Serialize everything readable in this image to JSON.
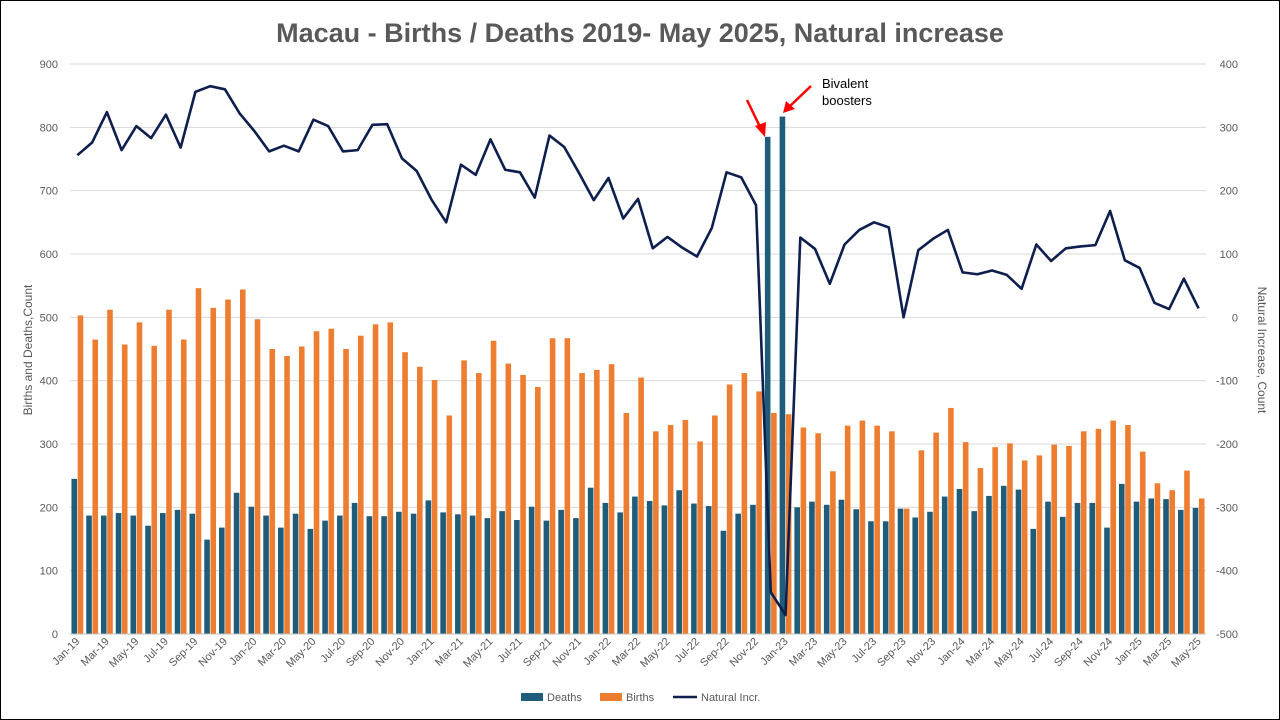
{
  "colors": {
    "deaths": "#1F5C7A",
    "births": "#ED7D31",
    "natural": "#0E1F4D",
    "grid": "#D9D9D9",
    "arrow": "#FF0000"
  },
  "chart_data": {
    "type": "bar",
    "title": "Macau - Births / Deaths 2019- May 2025, Natural increase",
    "ylabel": "Births and Deaths,Count",
    "y2label": "Natural Increase, Count",
    "ylim": [
      0,
      900
    ],
    "y2lim": [
      -500,
      400
    ],
    "y_ticks": [
      "0",
      "100",
      "200",
      "300",
      "400",
      "500",
      "600",
      "700",
      "800",
      "900"
    ],
    "y2_ticks": [
      "-500",
      "-400",
      "-300",
      "-200",
      "-100",
      "0",
      "100",
      "200",
      "300",
      "400"
    ],
    "grid": true,
    "legend": "bottom",
    "x_tick_labels": [
      "Jan-19",
      "Mar-19",
      "May-19",
      "Jul-19",
      "Sep-19",
      "Nov-19",
      "Jan-20",
      "Mar-20",
      "May-20",
      "Jul-20",
      "Sep-20",
      "Nov-20",
      "Jan-21",
      "Mar-21",
      "May-21",
      "Jul-21",
      "Sep-21",
      "Nov-21",
      "Jan-22",
      "Mar-22",
      "May-22",
      "Jul-22",
      "Sep-22",
      "Nov-22",
      "Jan-23",
      "Mar-23",
      "May-23",
      "Jul-23",
      "Sep-23",
      "Nov-23",
      "Jan-24",
      "Mar-24",
      "May-24",
      "Jul-24",
      "Sep-24",
      "Nov-24",
      "Jan-25",
      "Mar-25",
      "May-25"
    ],
    "categories": [
      "Jan-19",
      "Feb-19",
      "Mar-19",
      "Apr-19",
      "May-19",
      "Jun-19",
      "Jul-19",
      "Aug-19",
      "Sep-19",
      "Oct-19",
      "Nov-19",
      "Dec-19",
      "Jan-20",
      "Feb-20",
      "Mar-20",
      "Apr-20",
      "May-20",
      "Jun-20",
      "Jul-20",
      "Aug-20",
      "Sep-20",
      "Oct-20",
      "Nov-20",
      "Dec-20",
      "Jan-21",
      "Feb-21",
      "Mar-21",
      "Apr-21",
      "May-21",
      "Jun-21",
      "Jul-21",
      "Aug-21",
      "Sep-21",
      "Oct-21",
      "Nov-21",
      "Dec-21",
      "Jan-22",
      "Feb-22",
      "Mar-22",
      "Apr-22",
      "May-22",
      "Jun-22",
      "Jul-22",
      "Aug-22",
      "Sep-22",
      "Oct-22",
      "Nov-22",
      "Dec-22",
      "Jan-23",
      "Feb-23",
      "Mar-23",
      "Apr-23",
      "May-23",
      "Jun-23",
      "Jul-23",
      "Aug-23",
      "Sep-23",
      "Oct-23",
      "Nov-23",
      "Dec-23",
      "Jan-24",
      "Feb-24",
      "Mar-24",
      "Apr-24",
      "May-24",
      "Jun-24",
      "Jul-24",
      "Aug-24",
      "Sep-24",
      "Oct-24",
      "Nov-24",
      "Dec-24",
      "Jan-25",
      "Feb-25",
      "Mar-25",
      "Apr-25",
      "May-25"
    ],
    "series": [
      {
        "name": "Deaths",
        "type": "bar",
        "axis": "left",
        "values": [
          245,
          187,
          187,
          191,
          187,
          171,
          191,
          196,
          190,
          149,
          168,
          223,
          201,
          187,
          168,
          190,
          166,
          179,
          187,
          207,
          186,
          186,
          193,
          190,
          211,
          192,
          189,
          187,
          183,
          194,
          180,
          201,
          179,
          196,
          183,
          231,
          207,
          192,
          217,
          210,
          203,
          227,
          206,
          202,
          163,
          190,
          204,
          785,
          817,
          200,
          209,
          204,
          212,
          197,
          178,
          178,
          198,
          184,
          193,
          217,
          229,
          194,
          218,
          234,
          228,
          166,
          209,
          185,
          207,
          207,
          168,
          237,
          209,
          214,
          213,
          196,
          199
        ]
      },
      {
        "name": "Births",
        "type": "bar",
        "axis": "left",
        "values": [
          503,
          465,
          512,
          457,
          492,
          455,
          512,
          465,
          546,
          515,
          528,
          544,
          497,
          450,
          439,
          454,
          478,
          482,
          450,
          471,
          489,
          492,
          445,
          422,
          401,
          345,
          432,
          412,
          463,
          427,
          409,
          390,
          467,
          467,
          412,
          417,
          426,
          349,
          405,
          320,
          330,
          338,
          304,
          345,
          394,
          412,
          383,
          349,
          347,
          326,
          317,
          257,
          329,
          337,
          329,
          320,
          198,
          290,
          318,
          357,
          303,
          262,
          295,
          301,
          274,
          282,
          299,
          297,
          320,
          324,
          337,
          330,
          288,
          238,
          227,
          258,
          214
        ]
      },
      {
        "name": "Natural Incr.",
        "type": "line",
        "axis": "right",
        "values": [
          256,
          276,
          324,
          264,
          302,
          283,
          320,
          268,
          356,
          365,
          360,
          322,
          294,
          262,
          271,
          262,
          312,
          302,
          262,
          264,
          304,
          305,
          251,
          231,
          186,
          150,
          241,
          225,
          281,
          233,
          229,
          189,
          287,
          269,
          228,
          185,
          220,
          156,
          187,
          109,
          127,
          110,
          96,
          141,
          229,
          221,
          177,
          -434,
          -470,
          126,
          108,
          53,
          115,
          138,
          150,
          142,
          0,
          106,
          124,
          138,
          71,
          68,
          74,
          67,
          45,
          115,
          89,
          109,
          112,
          114,
          168,
          90,
          78,
          23,
          13,
          61,
          14
        ]
      }
    ],
    "annotations": [
      {
        "text_lines": [
          "Bivalent",
          "boosters"
        ]
      }
    ]
  }
}
